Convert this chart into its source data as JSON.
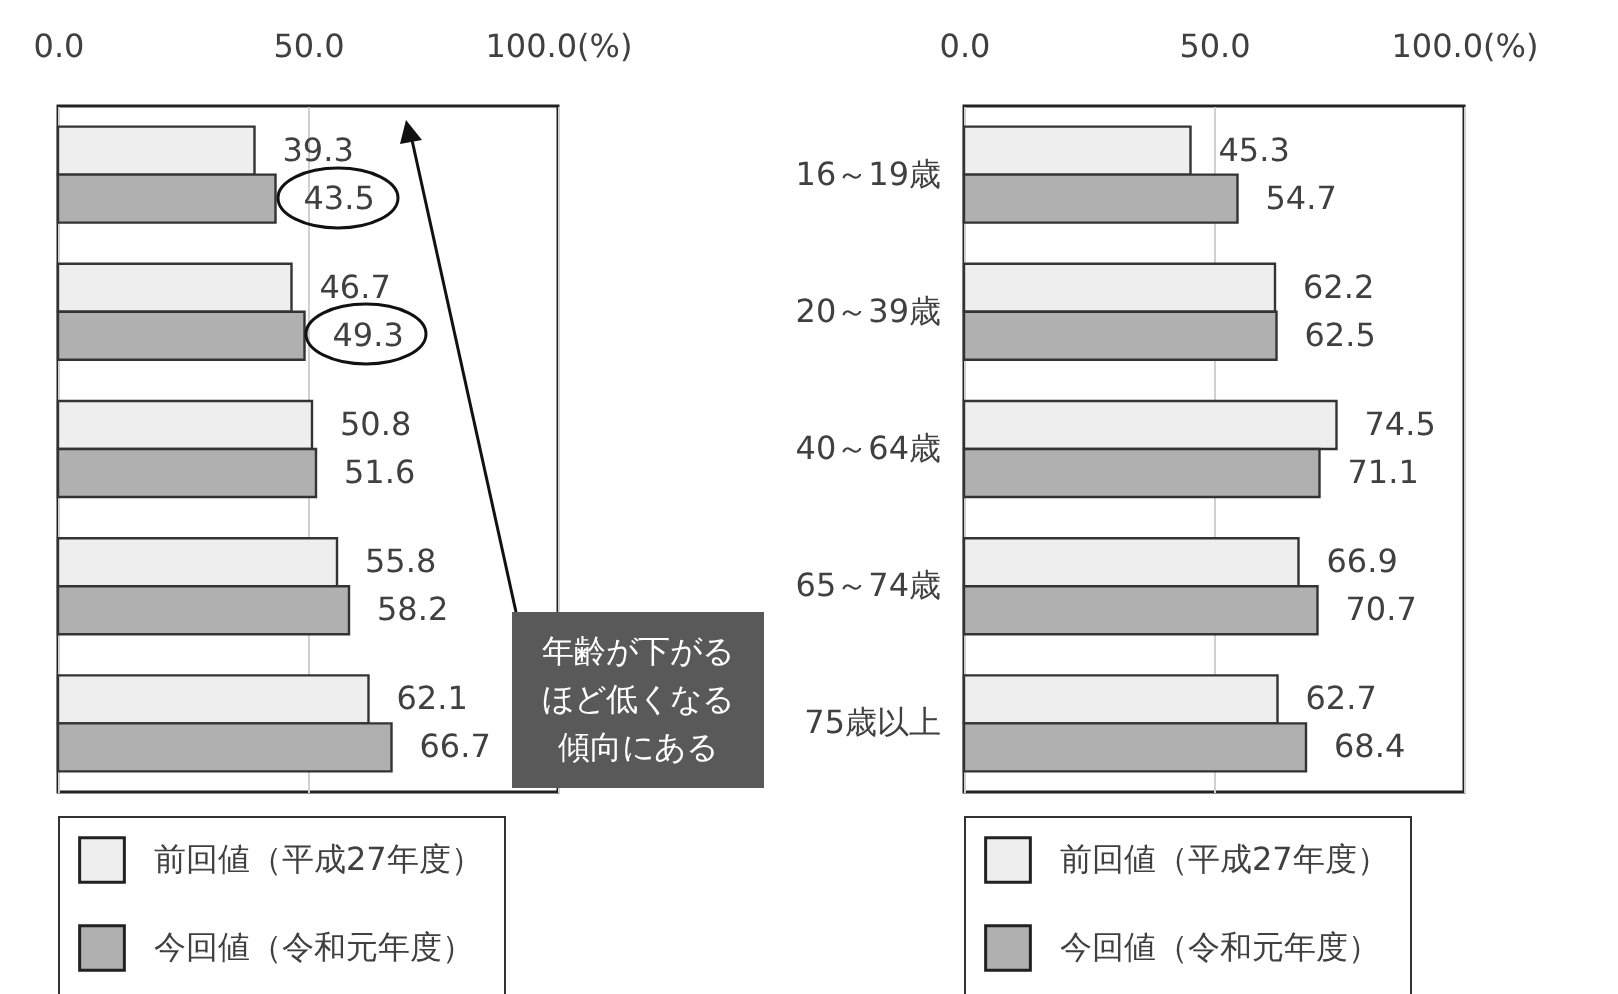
{
  "chart_data": [
    {
      "type": "bar",
      "orientation": "horizontal",
      "categories": [
        null,
        null,
        null,
        null,
        null
      ],
      "series": [
        {
          "name": "前回値（平成27年度）",
          "color": "#eeeeee",
          "values": [
            39.3,
            46.7,
            50.8,
            55.8,
            62.1
          ]
        },
        {
          "name": "今回値（令和元年度）",
          "color": "#b0b0b0",
          "values": [
            43.5,
            49.3,
            51.6,
            58.2,
            66.7
          ]
        }
      ],
      "xlim": [
        0,
        100
      ],
      "xticks": [
        {
          "value": 0,
          "label": "0.0"
        },
        {
          "value": 50,
          "label": "50.0"
        },
        {
          "value": 100,
          "label": "100.0(%)"
        }
      ],
      "grid": "x",
      "legend": "bottom",
      "data_labels": true,
      "annotations": [
        "年齢が下がるほど低くなる傾向にある"
      ]
    },
    {
      "type": "bar",
      "orientation": "horizontal",
      "categories": [
        "16～19歳",
        "20～39歳",
        "40～64歳",
        "65～74歳",
        "75歳以上"
      ],
      "series": [
        {
          "name": "前回値（平成27年度）",
          "color": "#eeeeee",
          "values": [
            45.3,
            62.2,
            74.5,
            66.9,
            62.7
          ]
        },
        {
          "name": "今回値（令和元年度）",
          "color": "#b0b0b0",
          "values": [
            54.7,
            62.5,
            71.1,
            70.7,
            68.4
          ]
        }
      ],
      "xlim": [
        0,
        100
      ],
      "xticks": [
        {
          "value": 0,
          "label": "0.0"
        },
        {
          "value": 50,
          "label": "50.0"
        },
        {
          "value": 100,
          "label": "100.0(%)"
        }
      ],
      "grid": "x",
      "legend": "bottom",
      "data_labels": true
    }
  ]
}
